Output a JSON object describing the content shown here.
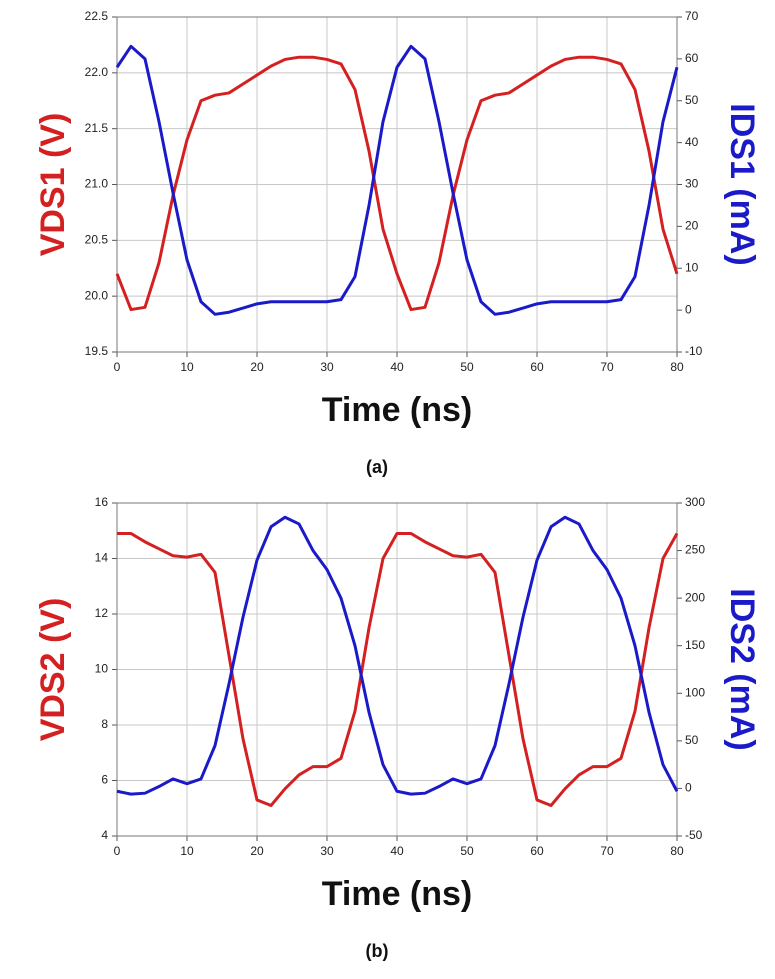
{
  "chart_data": [
    {
      "type": "line",
      "caption": "(a)",
      "xlabel": "Time (ns)",
      "ylabel": "VDS1 (V)",
      "y2label": "IDS1 (mA)",
      "x": [
        0,
        2,
        4,
        6,
        8,
        10,
        12,
        14,
        16,
        18,
        20,
        22,
        24,
        26,
        28,
        30,
        32,
        34,
        36,
        38,
        40,
        42,
        44,
        46,
        48,
        50,
        52,
        54,
        56,
        58,
        60,
        62,
        64,
        66,
        68,
        70,
        72,
        74,
        76,
        78,
        80
      ],
      "series": [
        {
          "name": "VDS1",
          "color": "#d42020",
          "values": [
            20.2,
            19.88,
            19.9,
            20.3,
            20.9,
            21.4,
            21.75,
            21.8,
            21.82,
            21.9,
            21.98,
            22.06,
            22.12,
            22.14,
            22.14,
            22.12,
            22.08,
            21.85,
            21.3,
            20.6,
            20.2,
            19.88,
            19.9,
            20.3,
            20.9,
            21.4,
            21.75,
            21.8,
            21.82,
            21.9,
            21.98,
            22.06,
            22.12,
            22.14,
            22.14,
            22.12,
            22.08,
            21.85,
            21.3,
            20.6,
            20.2
          ]
        },
        {
          "name": "IDS1",
          "color": "#1a1ac8",
          "axis": "y2",
          "values": [
            58,
            63,
            60,
            45,
            28,
            12,
            2,
            -1,
            -0.5,
            0.5,
            1.5,
            2,
            2,
            2,
            2,
            2,
            2.5,
            8,
            25,
            45,
            58,
            63,
            60,
            45,
            28,
            12,
            2,
            -1,
            -0.5,
            0.5,
            1.5,
            2,
            2,
            2,
            2,
            2,
            2.5,
            8,
            25,
            45,
            58
          ]
        }
      ],
      "xlim": [
        0,
        80
      ],
      "xticks": [
        0,
        10,
        20,
        30,
        40,
        50,
        60,
        70,
        80
      ],
      "ylim": [
        19.5,
        22.5
      ],
      "yticks": [
        19.5,
        {
          "value": 20,
          "label": "20.0"
        },
        20.5,
        {
          "value": 21,
          "label": "21.0"
        },
        21.5,
        {
          "value": 22,
          "label": "22.0"
        },
        22.5
      ],
      "y2lim": [
        -10,
        70
      ],
      "y2ticks": [
        -10,
        0,
        10,
        20,
        30,
        40,
        50,
        60,
        70
      ],
      "grid": true
    },
    {
      "type": "line",
      "caption": "(b)",
      "xlabel": "Time (ns)",
      "ylabel": "VDS2 (V)",
      "y2label": "IDS2 (mA)",
      "x": [
        0,
        2,
        4,
        6,
        8,
        10,
        12,
        14,
        16,
        18,
        20,
        22,
        24,
        26,
        28,
        30,
        32,
        34,
        36,
        38,
        40,
        42,
        44,
        46,
        48,
        50,
        52,
        54,
        56,
        58,
        60,
        62,
        64,
        66,
        68,
        70,
        72,
        74,
        76,
        78,
        80
      ],
      "series": [
        {
          "name": "VDS2",
          "color": "#d42020",
          "values": [
            14.9,
            14.9,
            14.6,
            14.35,
            14.1,
            14.05,
            14.15,
            13.5,
            10.5,
            7.5,
            5.3,
            5.1,
            5.7,
            6.2,
            6.5,
            6.5,
            6.8,
            8.5,
            11.5,
            14,
            14.9,
            14.9,
            14.6,
            14.35,
            14.1,
            14.05,
            14.15,
            13.5,
            10.5,
            7.5,
            5.3,
            5.1,
            5.7,
            6.2,
            6.5,
            6.5,
            6.8,
            8.5,
            11.5,
            14,
            14.9
          ]
        },
        {
          "name": "IDS2",
          "color": "#1a1ac8",
          "axis": "y2",
          "values": [
            -3,
            -6,
            -5,
            2,
            10,
            5,
            10,
            45,
            110,
            180,
            240,
            275,
            285,
            278,
            250,
            230,
            200,
            150,
            80,
            25,
            -3,
            -6,
            -5,
            2,
            10,
            5,
            10,
            45,
            110,
            180,
            240,
            275,
            285,
            278,
            250,
            230,
            200,
            150,
            80,
            25,
            -3
          ]
        }
      ],
      "xlim": [
        0,
        80
      ],
      "xticks": [
        0,
        10,
        20,
        30,
        40,
        50,
        60,
        70,
        80
      ],
      "ylim": [
        4,
        16
      ],
      "yticks": [
        4,
        6,
        8,
        10,
        12,
        14,
        16
      ],
      "y2lim": [
        -50,
        300
      ],
      "y2ticks": [
        -50,
        0,
        50,
        100,
        150,
        200,
        250,
        300
      ],
      "grid": true
    }
  ]
}
